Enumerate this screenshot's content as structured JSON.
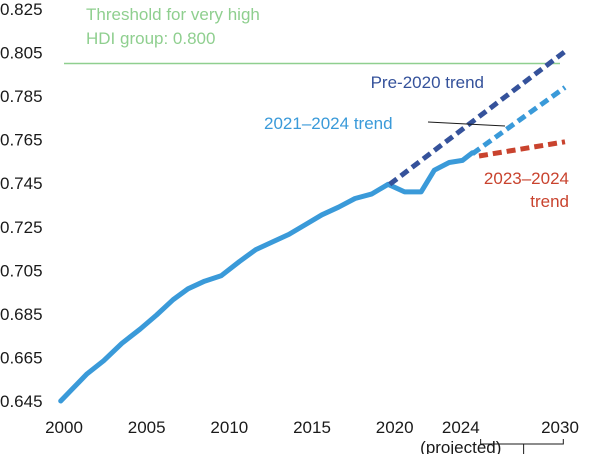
{
  "chart_data": {
    "type": "line",
    "title": "",
    "xlabel": "",
    "ylabel": "",
    "xlim": [
      2000,
      2030
    ],
    "ylim": [
      0.645,
      0.825
    ],
    "x_ticks": [
      {
        "value": 2000,
        "label": "2000"
      },
      {
        "value": 2005,
        "label": "2005"
      },
      {
        "value": 2010,
        "label": "2010"
      },
      {
        "value": 2015,
        "label": "2015"
      },
      {
        "value": 2020,
        "label": "2020"
      },
      {
        "value": 2024,
        "label": "2024",
        "sublabel": "(projected)",
        "color": "#3a9ad9"
      },
      {
        "value": 2030,
        "label": "2030"
      }
    ],
    "y_ticks": [
      "0.645",
      "0.665",
      "0.685",
      "0.705",
      "0.725",
      "0.745",
      "0.765",
      "0.785",
      "0.805",
      "0.825"
    ],
    "grid": false,
    "threshold": {
      "value": 0.8,
      "color": "#8fcf8f",
      "label_line1": "Threshold for very high",
      "label_line2": "HDI group: 0.800"
    },
    "series": [
      {
        "style": "solid",
        "color": "#3a9ad9",
        "points": [
          [
            1999.8,
            0.645
          ],
          [
            2000.5,
            0.6505
          ],
          [
            2001.4,
            0.6575
          ],
          [
            2002.4,
            0.6635
          ],
          [
            2003.5,
            0.6715
          ],
          [
            2004.6,
            0.678
          ],
          [
            2005.6,
            0.6845
          ],
          [
            2006.6,
            0.6915
          ],
          [
            2007.5,
            0.6965
          ],
          [
            2008.5,
            0.7
          ],
          [
            2009.5,
            0.7025
          ],
          [
            2010.6,
            0.709
          ],
          [
            2011.6,
            0.7145
          ],
          [
            2012.6,
            0.718
          ],
          [
            2013.6,
            0.7215
          ],
          [
            2014.6,
            0.726
          ],
          [
            2015.6,
            0.7305
          ],
          [
            2016.6,
            0.734
          ],
          [
            2017.6,
            0.738
          ],
          [
            2018.6,
            0.74
          ],
          [
            2019.6,
            0.7445
          ],
          [
            2020.6,
            0.741
          ],
          [
            2021.6,
            0.741
          ],
          [
            2022.4,
            0.751
          ],
          [
            2023.3,
            0.7545
          ],
          [
            2024.1,
            0.7555
          ],
          [
            2024.7,
            0.759
          ]
        ]
      },
      {
        "name": "Pre-2020 trend",
        "style": "dashed",
        "color": "#35529b",
        "points": [
          [
            2019.7,
            0.7445
          ],
          [
            2030.3,
            0.8055
          ]
        ]
      },
      {
        "name": "2021–2024 trend",
        "style": "dashed",
        "color": "#3a9ad9",
        "points": [
          [
            2024.7,
            0.7585
          ],
          [
            2030.3,
            0.789
          ]
        ]
      },
      {
        "name": "2023–2024 trend",
        "style": "dashed",
        "color": "#c9432e",
        "points": [
          [
            2025.1,
            0.7575
          ],
          [
            2030.3,
            0.764
          ]
        ]
      }
    ],
    "annotations": [
      {
        "text": "Pre-2020 trend",
        "color": "#35529b"
      },
      {
        "text": "2021–2024 trend",
        "color": "#3a9ad9"
      },
      {
        "line1": "2023–2024",
        "line2": "trend",
        "color": "#c9432e"
      }
    ]
  }
}
